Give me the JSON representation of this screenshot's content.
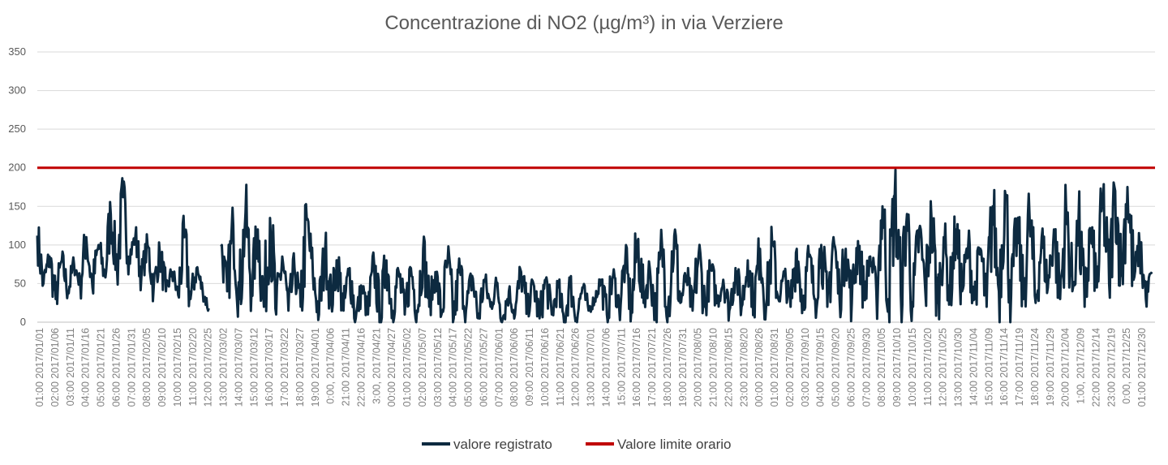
{
  "chart_data": {
    "type": "line",
    "title": "Concentrazione di NO2 (µg/m³) in via Verziere",
    "xlabel": "",
    "ylabel": "",
    "ylim": [
      0,
      350
    ],
    "yticks": [
      0,
      50,
      100,
      150,
      200,
      250,
      300,
      350
    ],
    "grid": true,
    "legend_position": "bottom",
    "x_start": "2017-01-01",
    "x_days_total": 365,
    "x_tick_step_days": 5,
    "x_tick_labels": [
      "01:00 2017/01/01",
      "02:00 2017/01/06",
      "03:00 2017/01/11",
      "04:00 2017/01/16",
      "05:00 2017/01/21",
      "06:00 2017/01/26",
      "07:00 2017/01/31",
      "08:00 2017/02/05",
      "09:00 2017/02/10",
      "10:00 2017/02/15",
      "11:00 2017/02/20",
      "12:00 2017/02/25",
      "13:00 2017/03/02",
      "14:00 2017/03/07",
      "15:00 2017/03/12",
      "16:00 2017/03/17",
      "17:00 2017/03/22",
      "18:00 2017/03/27",
      "19:00 2017/04/01",
      "0:00, 2017/04/06",
      "21:00 2017/04/11",
      "22:00 2017/04/16",
      "3:00, 2017/04/21",
      "00:00 2017/04/27",
      "01:00 2017/05/02",
      "02:00 2017/05/07",
      "03:00 2017/05/12",
      "04:00 2017/05/17",
      "05:00 2017/05/22",
      "06:00 2017/05/27",
      "07:00 2017/06/01",
      "08:00 2017/06/06",
      "09:00 2017/06/11",
      "10:00 2017/06/16",
      "11:00 2017/06/21",
      "12:00 2017/06/26",
      "13:00 2017/07/01",
      "14:00 2017/07/06",
      "15:00 2017/07/11",
      "16:00 2017/07/16",
      "17:00 2017/07/21",
      "18:00 2017/07/26",
      "19:00 2017/07/31",
      "20:00 2017/08/05",
      "21:00 2017/08/10",
      "22:00 2017/08/15",
      "23:00 2017/08/20",
      "00:00 2017/08/26",
      "01:00 2017/08/31",
      "02:00 2017/09/05",
      "03:00 2017/09/10",
      "04:00 2017/09/15",
      "05:00 2017/09/20",
      "06:00 2017/09/25",
      "07:00 2017/09/30",
      "08:00 2017/10/05",
      "09:00 2017/10/10",
      "10:00 2017/10/15",
      "11:00 2017/10/20",
      "12:00 2017/10/25",
      "13:00 2017/10/30",
      "14:00 2017/11/04",
      "15:00 2017/11/09",
      "16:00 2017/11/14",
      "17:00 2017/11/19",
      "18:00 2017/11/24",
      "19:00 2017/11/29",
      "20:00 2017/12/04",
      "1:00, 2017/12/09",
      "22:00 2017/12/14",
      "23:00 2017/12/19",
      "0:00, 2017/12/25",
      "01:00 2017/12/30"
    ],
    "series": [
      {
        "name": "valore registrato",
        "color": "#0d2a40",
        "sample_step_days": 2,
        "values": [
          112,
          50,
          85,
          30,
          80,
          40,
          75,
          50,
          110,
          45,
          100,
          60,
          140,
          70,
          162,
          85,
          110,
          60,
          100,
          45,
          90,
          40,
          65,
          35,
          110,
          30,
          70,
          40,
          18,
          null,
          98,
          40,
          125,
          30,
          142,
          45,
          120,
          20,
          135,
          10,
          85,
          15,
          70,
          20,
          133,
          60,
          10,
          95,
          25,
          80,
          15,
          70,
          5,
          45,
          10,
          75,
          5,
          80,
          15,
          65,
          10,
          70,
          15,
          95,
          20,
          65,
          10,
          80,
          5,
          70,
          15,
          60,
          5,
          55,
          20,
          50,
          5,
          40,
          10,
          65,
          15,
          50,
          5,
          55,
          10,
          45,
          0,
          50,
          5,
          45,
          15,
          30,
          55,
          10,
          60,
          20,
          80,
          15,
          105,
          25,
          70,
          10,
          100,
          20,
          112,
          25,
          60,
          15,
          90,
          20,
          70,
          25,
          55,
          15,
          70,
          20,
          80,
          25,
          95,
          20,
          100,
          30,
          60,
          20,
          95,
          25,
          85,
          30,
          100,
          20,
          110,
          30,
          95,
          25,
          105,
          35,
          85,
          40,
          150,
          30,
          165,
          35,
          140,
          20,
          120,
          40,
          135,
          25,
          110,
          35,
          120,
          40,
          100,
          30,
          95,
          20,
          150,
          40,
          170,
          35,
          125,
          30,
          140,
          25,
          110,
          45,
          120,
          30,
          145,
          40,
          130,
          20,
          120,
          45,
          160,
          50,
          170,
          60,
          175,
          55,
          100,
          30,
          65
        ]
      },
      {
        "name": "Valore limite orario",
        "color": "#c00000",
        "constant": 200
      }
    ]
  }
}
